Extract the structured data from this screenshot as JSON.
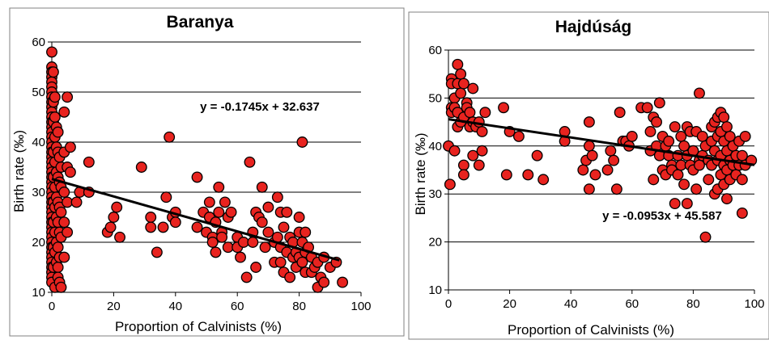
{
  "chart_data": [
    {
      "type": "scatter",
      "title": "Baranya",
      "xlabel": "Proportion of Calvinists (%)",
      "ylabel": "Birth rate (‰)",
      "xlim": [
        0,
        100
      ],
      "ylim": [
        10,
        60
      ],
      "xticks": [
        "0",
        "20",
        "40",
        "60",
        "80",
        "100"
      ],
      "yticks": [
        "10",
        "20",
        "30",
        "40",
        "50",
        "60"
      ],
      "grid": "horizontal",
      "colors": {
        "marker": "#e8231f",
        "trendline": "#000000"
      },
      "trendline": {
        "label": "y = -0.1745x + 32.637",
        "slope": -0.1745,
        "intercept": 32.637,
        "x_range": [
          0,
          93
        ]
      },
      "points": [
        [
          0,
          58
        ],
        [
          0,
          55
        ],
        [
          0,
          54
        ],
        [
          0,
          53
        ],
        [
          0,
          52
        ],
        [
          0,
          51
        ],
        [
          0,
          50
        ],
        [
          0,
          49
        ],
        [
          0,
          48
        ],
        [
          0,
          47
        ],
        [
          0,
          46
        ],
        [
          0,
          45
        ],
        [
          0,
          44
        ],
        [
          0,
          43
        ],
        [
          0,
          42
        ],
        [
          0,
          41
        ],
        [
          0,
          40
        ],
        [
          0,
          39
        ],
        [
          0,
          38
        ],
        [
          0,
          37
        ],
        [
          0,
          36
        ],
        [
          0,
          35
        ],
        [
          0,
          34
        ],
        [
          0,
          33
        ],
        [
          0,
          32
        ],
        [
          0,
          31
        ],
        [
          0,
          30
        ],
        [
          0,
          29
        ],
        [
          0,
          28
        ],
        [
          0,
          27
        ],
        [
          0,
          26
        ],
        [
          0,
          25
        ],
        [
          0,
          24
        ],
        [
          0,
          23
        ],
        [
          0,
          22
        ],
        [
          0,
          21
        ],
        [
          0,
          20
        ],
        [
          0,
          19
        ],
        [
          0,
          18
        ],
        [
          0,
          17
        ],
        [
          0,
          16
        ],
        [
          0,
          15
        ],
        [
          0,
          14
        ],
        [
          0,
          13
        ],
        [
          0,
          12
        ],
        [
          0.5,
          54
        ],
        [
          0.5,
          48
        ],
        [
          0.5,
          44
        ],
        [
          0.5,
          38
        ],
        [
          0.5,
          33
        ],
        [
          0.5,
          28
        ],
        [
          0.5,
          24
        ],
        [
          0.5,
          19
        ],
        [
          0.5,
          15
        ],
        [
          1,
          49
        ],
        [
          1,
          45
        ],
        [
          1,
          41
        ],
        [
          1,
          36
        ],
        [
          1,
          31
        ],
        [
          1,
          27
        ],
        [
          1,
          22
        ],
        [
          1,
          18
        ],
        [
          1,
          11
        ],
        [
          1.5,
          43
        ],
        [
          1.5,
          39
        ],
        [
          1.5,
          34
        ],
        [
          1.5,
          29
        ],
        [
          1.5,
          25
        ],
        [
          1.5,
          20
        ],
        [
          1.5,
          16
        ],
        [
          2,
          42
        ],
        [
          2,
          38
        ],
        [
          2,
          33
        ],
        [
          2,
          28
        ],
        [
          2,
          24
        ],
        [
          2,
          19
        ],
        [
          2,
          15
        ],
        [
          2,
          13
        ],
        [
          2.5,
          37
        ],
        [
          2.5,
          32
        ],
        [
          2.5,
          27
        ],
        [
          2.5,
          22
        ],
        [
          2.5,
          17
        ],
        [
          2.5,
          12
        ],
        [
          3,
          35
        ],
        [
          3,
          31
        ],
        [
          3,
          26
        ],
        [
          3,
          21
        ],
        [
          3,
          11
        ],
        [
          4,
          46
        ],
        [
          4,
          38
        ],
        [
          4,
          30
        ],
        [
          4,
          24
        ],
        [
          4,
          17
        ],
        [
          5,
          49
        ],
        [
          5,
          35
        ],
        [
          5,
          28
        ],
        [
          5,
          22
        ],
        [
          6,
          39
        ],
        [
          6,
          34
        ],
        [
          8,
          28
        ],
        [
          9,
          30
        ],
        [
          12,
          36
        ],
        [
          12,
          30
        ],
        [
          18,
          22
        ],
        [
          19,
          23
        ],
        [
          20,
          25
        ],
        [
          21,
          27
        ],
        [
          22,
          21
        ],
        [
          29,
          35
        ],
        [
          32,
          25
        ],
        [
          32,
          23
        ],
        [
          34,
          18
        ],
        [
          36,
          23
        ],
        [
          37,
          29
        ],
        [
          38,
          41
        ],
        [
          39,
          25
        ],
        [
          40,
          26
        ],
        [
          40,
          24
        ],
        [
          47,
          33
        ],
        [
          47,
          23
        ],
        [
          49,
          26
        ],
        [
          50,
          22
        ],
        [
          51,
          28
        ],
        [
          51,
          25
        ],
        [
          52,
          21
        ],
        [
          52,
          20
        ],
        [
          53,
          24
        ],
        [
          53,
          18
        ],
        [
          54,
          31
        ],
        [
          54,
          26
        ],
        [
          55,
          22
        ],
        [
          55,
          21
        ],
        [
          56,
          28
        ],
        [
          57,
          25
        ],
        [
          57,
          19
        ],
        [
          58,
          26
        ],
        [
          60,
          21
        ],
        [
          60,
          19
        ],
        [
          61,
          17
        ],
        [
          62,
          20
        ],
        [
          63,
          13
        ],
        [
          64,
          36
        ],
        [
          65,
          22
        ],
        [
          65,
          20
        ],
        [
          66,
          26
        ],
        [
          66,
          15
        ],
        [
          67,
          25
        ],
        [
          68,
          31
        ],
        [
          68,
          24
        ],
        [
          69,
          19
        ],
        [
          70,
          27
        ],
        [
          70,
          22
        ],
        [
          72,
          20
        ],
        [
          72,
          16
        ],
        [
          73,
          29
        ],
        [
          73,
          21
        ],
        [
          74,
          26
        ],
        [
          74,
          19
        ],
        [
          74,
          16
        ],
        [
          75,
          23
        ],
        [
          75,
          14
        ],
        [
          76,
          26
        ],
        [
          76,
          18
        ],
        [
          77,
          21
        ],
        [
          77,
          13
        ],
        [
          78,
          20
        ],
        [
          78,
          17
        ],
        [
          79,
          18
        ],
        [
          79,
          15
        ],
        [
          80,
          25
        ],
        [
          80,
          22
        ],
        [
          80,
          17
        ],
        [
          81,
          40
        ],
        [
          81,
          20
        ],
        [
          81,
          16
        ],
        [
          82,
          22
        ],
        [
          82,
          18
        ],
        [
          82,
          14
        ],
        [
          83,
          19
        ],
        [
          84,
          17
        ],
        [
          84,
          14
        ],
        [
          85,
          15
        ],
        [
          86,
          11
        ],
        [
          86,
          16
        ],
        [
          87,
          13
        ],
        [
          88,
          12
        ],
        [
          88,
          17
        ],
        [
          90,
          15
        ],
        [
          92,
          16
        ],
        [
          94,
          12
        ]
      ]
    },
    {
      "type": "scatter",
      "title": "Hajdúság",
      "xlabel": "Proportion of Calvinists (%)",
      "ylabel": "Birth rate (‰)",
      "xlim": [
        0,
        100
      ],
      "ylim": [
        10,
        60
      ],
      "xticks": [
        "0",
        "20",
        "40",
        "60",
        "80",
        "100"
      ],
      "yticks": [
        "10",
        "20",
        "30",
        "40",
        "50",
        "60"
      ],
      "grid": "horizontal",
      "colors": {
        "marker": "#e8231f",
        "trendline": "#000000"
      },
      "trendline": {
        "label": "y = -0.0953x + 45.587",
        "slope": -0.0953,
        "intercept": 45.587,
        "x_range": [
          0,
          100
        ]
      },
      "points": [
        [
          0,
          40
        ],
        [
          0.5,
          32
        ],
        [
          1,
          54
        ],
        [
          1,
          53
        ],
        [
          1,
          48
        ],
        [
          1,
          47
        ],
        [
          2,
          39
        ],
        [
          2,
          50
        ],
        [
          2,
          48
        ],
        [
          3,
          57
        ],
        [
          3,
          53
        ],
        [
          3,
          47
        ],
        [
          3,
          44
        ],
        [
          4,
          55
        ],
        [
          4,
          51
        ],
        [
          4,
          45
        ],
        [
          5,
          53
        ],
        [
          5,
          46
        ],
        [
          5,
          36
        ],
        [
          5,
          34
        ],
        [
          6,
          49
        ],
        [
          6,
          48
        ],
        [
          7,
          44
        ],
        [
          7,
          47
        ],
        [
          8,
          52
        ],
        [
          8,
          38
        ],
        [
          8,
          45
        ],
        [
          9,
          44
        ],
        [
          10,
          36
        ],
        [
          10,
          45
        ],
        [
          11,
          39
        ],
        [
          11,
          43
        ],
        [
          12,
          47
        ],
        [
          18,
          48
        ],
        [
          19,
          34
        ],
        [
          20,
          43
        ],
        [
          23,
          42
        ],
        [
          26,
          34
        ],
        [
          29,
          38
        ],
        [
          31,
          33
        ],
        [
          38,
          41
        ],
        [
          38,
          43
        ],
        [
          44,
          35
        ],
        [
          45,
          37
        ],
        [
          46,
          45
        ],
        [
          46,
          31
        ],
        [
          46,
          40
        ],
        [
          47,
          38
        ],
        [
          48,
          34
        ],
        [
          52,
          35
        ],
        [
          53,
          39
        ],
        [
          54,
          37
        ],
        [
          55,
          31
        ],
        [
          56,
          47
        ],
        [
          57,
          41
        ],
        [
          58,
          41
        ],
        [
          59,
          40
        ],
        [
          60,
          42
        ],
        [
          63,
          48
        ],
        [
          65,
          48
        ],
        [
          66,
          43
        ],
        [
          66,
          39
        ],
        [
          67,
          46
        ],
        [
          67,
          33
        ],
        [
          68,
          45
        ],
        [
          68,
          40
        ],
        [
          69,
          49
        ],
        [
          69,
          38
        ],
        [
          70,
          35
        ],
        [
          70,
          42
        ],
        [
          71,
          34
        ],
        [
          71,
          40
        ],
        [
          72,
          41
        ],
        [
          72,
          38
        ],
        [
          73,
          36
        ],
        [
          73,
          35
        ],
        [
          74,
          28
        ],
        [
          74,
          44
        ],
        [
          75,
          38
        ],
        [
          75,
          34
        ],
        [
          76,
          42
        ],
        [
          76,
          36
        ],
        [
          77,
          40
        ],
        [
          77,
          32
        ],
        [
          78,
          44
        ],
        [
          78,
          38
        ],
        [
          78,
          28
        ],
        [
          79,
          43
        ],
        [
          79,
          36
        ],
        [
          80,
          39
        ],
        [
          80,
          35
        ],
        [
          81,
          43
        ],
        [
          81,
          31
        ],
        [
          82,
          51
        ],
        [
          82,
          37
        ],
        [
          82,
          36
        ],
        [
          83,
          42
        ],
        [
          83,
          38
        ],
        [
          84,
          40
        ],
        [
          84,
          21
        ],
        [
          85,
          37
        ],
        [
          85,
          33
        ],
        [
          86,
          44
        ],
        [
          86,
          41
        ],
        [
          86,
          36
        ],
        [
          87,
          45
        ],
        [
          87,
          39
        ],
        [
          87,
          30
        ],
        [
          88,
          46
        ],
        [
          88,
          42
        ],
        [
          88,
          37
        ],
        [
          88,
          31
        ],
        [
          89,
          47
        ],
        [
          89,
          43
        ],
        [
          89,
          38
        ],
        [
          89,
          34
        ],
        [
          90,
          46
        ],
        [
          90,
          41
        ],
        [
          90,
          36
        ],
        [
          90,
          32
        ],
        [
          91,
          44
        ],
        [
          91,
          39
        ],
        [
          91,
          35
        ],
        [
          91,
          29
        ],
        [
          92,
          42
        ],
        [
          92,
          37
        ],
        [
          92,
          33
        ],
        [
          93,
          40
        ],
        [
          93,
          36
        ],
        [
          94,
          38
        ],
        [
          94,
          34
        ],
        [
          95,
          41
        ],
        [
          95,
          36
        ],
        [
          96,
          38
        ],
        [
          96,
          33
        ],
        [
          96,
          26
        ],
        [
          97,
          42
        ],
        [
          97,
          36
        ],
        [
          99,
          37
        ]
      ]
    }
  ]
}
